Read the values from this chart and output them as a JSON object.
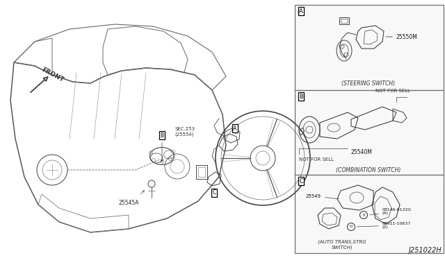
{
  "bg_color": "#ffffff",
  "diagram_number": "J251022H",
  "fig_width": 6.4,
  "fig_height": 3.72,
  "dpi": 100,
  "section_boxes": {
    "A": [
      0.657,
      0.635,
      0.343,
      0.355
    ],
    "B": [
      0.657,
      0.275,
      0.343,
      0.355
    ],
    "C": [
      0.657,
      0.0,
      0.343,
      0.27
    ]
  },
  "section_A": {
    "part": "25550M",
    "desc": "(STEERING SWITCH)"
  },
  "section_B": {
    "part": "25540M",
    "note1": "NOT FOR SELL",
    "note2": "NOT FOR SELL",
    "desc": "(COMBINATION SWITCH)"
  },
  "section_C": {
    "part": "25549",
    "bolt_label": "B08146-6122G\n(4)",
    "nut_label": "N08911-10637\n(2)",
    "desc": "(AUTO TRANS,STRG\nSWITCH)"
  },
  "main": {
    "front_text": "FRONT",
    "sec_text": "SEC.253\n(25554)",
    "part_25545A": "25545A"
  }
}
